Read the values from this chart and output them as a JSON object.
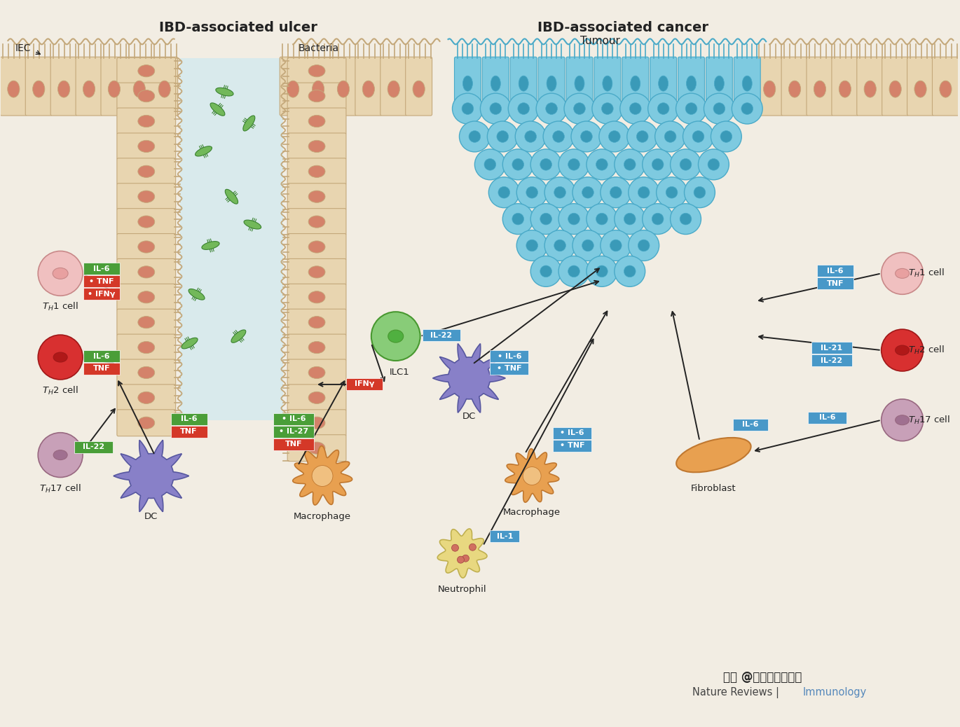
{
  "bg_color": "#f2ede3",
  "title_left": "IBD-associated ulcer",
  "title_right": "IBD-associated cancer",
  "watermark": "头条 @投必得论文编译",
  "journal_black": "Nature Reviews | ",
  "journal_blue": "Immunology"
}
